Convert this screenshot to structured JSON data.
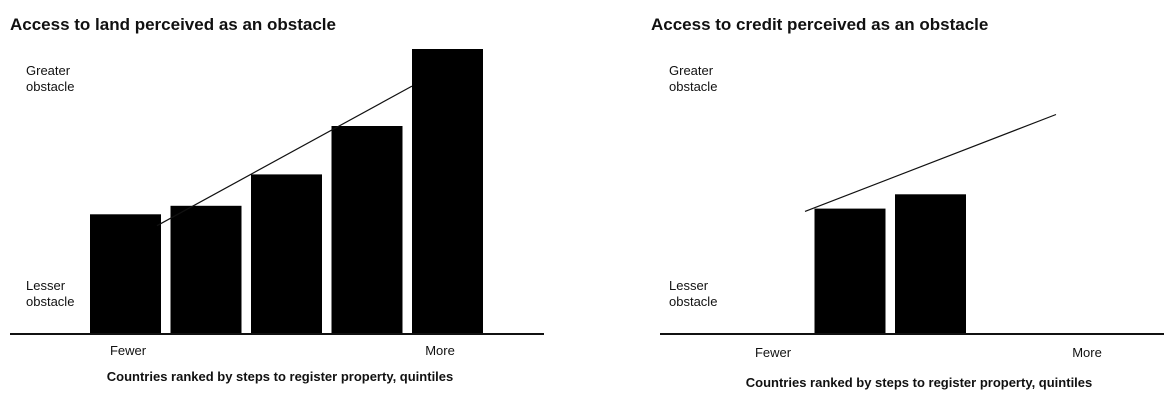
{
  "chart_data": [
    {
      "type": "bar",
      "title": "Access to land perceived as an obstacle",
      "xlabel": "Countries ranked by steps to register property, quintiles",
      "ylabel_top": "Greater obstacle",
      "ylabel_bottom": "Lesser obstacle",
      "x_low_label": "Fewer",
      "x_high_label": "More",
      "ylim": [
        0,
        100
      ],
      "categories": [
        "Q1",
        "Q2",
        "Q3",
        "Q4",
        "Q5"
      ],
      "values": [
        42,
        45,
        56,
        73,
        100
      ],
      "trend": {
        "from": 38,
        "to": 87
      },
      "colors": {
        "bar": "#000000",
        "line": "#111111"
      }
    },
    {
      "type": "bar",
      "title": "Access to credit perceived as an obstacle",
      "xlabel": "Countries ranked by steps to register property, quintiles",
      "ylabel_top": "Greater obstacle",
      "ylabel_bottom": "Lesser obstacle",
      "x_low_label": "Fewer",
      "x_high_label": "More",
      "ylim": [
        0,
        100
      ],
      "categories": [
        "Q1",
        "Q2",
        "Q3",
        "Q4",
        "Q5"
      ],
      "values": [
        null,
        44,
        49,
        null,
        null
      ],
      "trend": {
        "from": 43,
        "to": 77
      },
      "colors": {
        "bar": "#000000",
        "line": "#111111"
      }
    }
  ]
}
